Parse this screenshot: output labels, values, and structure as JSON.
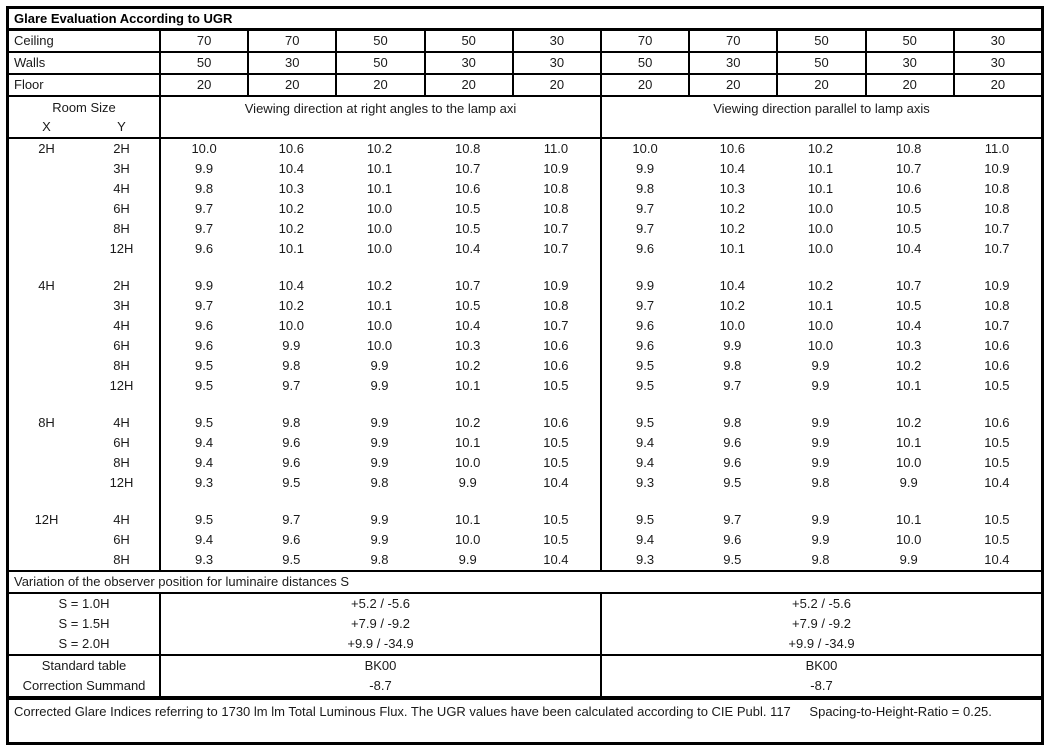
{
  "title": "Glare Evaluation According to UGR",
  "surface": {
    "rows": [
      {
        "label": "Ceiling",
        "values": [
          "70",
          "70",
          "50",
          "50",
          "30",
          "70",
          "70",
          "50",
          "50",
          "30"
        ]
      },
      {
        "label": "Walls",
        "values": [
          "50",
          "30",
          "50",
          "30",
          "30",
          "50",
          "30",
          "50",
          "30",
          "30"
        ]
      },
      {
        "label": "Floor",
        "values": [
          "20",
          "20",
          "20",
          "20",
          "20",
          "20",
          "20",
          "20",
          "20",
          "20"
        ]
      }
    ]
  },
  "column_header": {
    "room_size": "Room Size",
    "x": "X",
    "y": "Y",
    "left": "Viewing direction at right angles to the lamp axi",
    "right": "Viewing direction parallel to lamp axis"
  },
  "body": {
    "blocks": [
      {
        "x": "2H",
        "rows": [
          {
            "y": "2H",
            "values": [
              "10.0",
              "10.6",
              "10.2",
              "10.8",
              "11.0",
              "10.0",
              "10.6",
              "10.2",
              "10.8",
              "11.0"
            ]
          },
          {
            "y": "3H",
            "values": [
              "9.9",
              "10.4",
              "10.1",
              "10.7",
              "10.9",
              "9.9",
              "10.4",
              "10.1",
              "10.7",
              "10.9"
            ]
          },
          {
            "y": "4H",
            "values": [
              "9.8",
              "10.3",
              "10.1",
              "10.6",
              "10.8",
              "9.8",
              "10.3",
              "10.1",
              "10.6",
              "10.8"
            ]
          },
          {
            "y": "6H",
            "values": [
              "9.7",
              "10.2",
              "10.0",
              "10.5",
              "10.8",
              "9.7",
              "10.2",
              "10.0",
              "10.5",
              "10.8"
            ]
          },
          {
            "y": "8H",
            "values": [
              "9.7",
              "10.2",
              "10.0",
              "10.5",
              "10.7",
              "9.7",
              "10.2",
              "10.0",
              "10.5",
              "10.7"
            ]
          },
          {
            "y": "12H",
            "values": [
              "9.6",
              "10.1",
              "10.0",
              "10.4",
              "10.7",
              "9.6",
              "10.1",
              "10.0",
              "10.4",
              "10.7"
            ]
          }
        ]
      },
      {
        "x": "4H",
        "rows": [
          {
            "y": "2H",
            "values": [
              "9.9",
              "10.4",
              "10.2",
              "10.7",
              "10.9",
              "9.9",
              "10.4",
              "10.2",
              "10.7",
              "10.9"
            ]
          },
          {
            "y": "3H",
            "values": [
              "9.7",
              "10.2",
              "10.1",
              "10.5",
              "10.8",
              "9.7",
              "10.2",
              "10.1",
              "10.5",
              "10.8"
            ]
          },
          {
            "y": "4H",
            "values": [
              "9.6",
              "10.0",
              "10.0",
              "10.4",
              "10.7",
              "9.6",
              "10.0",
              "10.0",
              "10.4",
              "10.7"
            ]
          },
          {
            "y": "6H",
            "values": [
              "9.6",
              "9.9",
              "10.0",
              "10.3",
              "10.6",
              "9.6",
              "9.9",
              "10.0",
              "10.3",
              "10.6"
            ]
          },
          {
            "y": "8H",
            "values": [
              "9.5",
              "9.8",
              "9.9",
              "10.2",
              "10.6",
              "9.5",
              "9.8",
              "9.9",
              "10.2",
              "10.6"
            ]
          },
          {
            "y": "12H",
            "values": [
              "9.5",
              "9.7",
              "9.9",
              "10.1",
              "10.5",
              "9.5",
              "9.7",
              "9.9",
              "10.1",
              "10.5"
            ]
          }
        ]
      },
      {
        "x": "8H",
        "rows": [
          {
            "y": "4H",
            "values": [
              "9.5",
              "9.8",
              "9.9",
              "10.2",
              "10.6",
              "9.5",
              "9.8",
              "9.9",
              "10.2",
              "10.6"
            ]
          },
          {
            "y": "6H",
            "values": [
              "9.4",
              "9.6",
              "9.9",
              "10.1",
              "10.5",
              "9.4",
              "9.6",
              "9.9",
              "10.1",
              "10.5"
            ]
          },
          {
            "y": "8H",
            "values": [
              "9.4",
              "9.6",
              "9.9",
              "10.0",
              "10.5",
              "9.4",
              "9.6",
              "9.9",
              "10.0",
              "10.5"
            ]
          },
          {
            "y": "12H",
            "values": [
              "9.3",
              "9.5",
              "9.8",
              "9.9",
              "10.4",
              "9.3",
              "9.5",
              "9.8",
              "9.9",
              "10.4"
            ]
          }
        ]
      },
      {
        "x": "12H",
        "rows": [
          {
            "y": "4H",
            "values": [
              "9.5",
              "9.7",
              "9.9",
              "10.1",
              "10.5",
              "9.5",
              "9.7",
              "9.9",
              "10.1",
              "10.5"
            ]
          },
          {
            "y": "6H",
            "values": [
              "9.4",
              "9.6",
              "9.9",
              "10.0",
              "10.5",
              "9.4",
              "9.6",
              "9.9",
              "10.0",
              "10.5"
            ]
          },
          {
            "y": "8H",
            "values": [
              "9.3",
              "9.5",
              "9.8",
              "9.9",
              "10.4",
              "9.3",
              "9.5",
              "9.8",
              "9.9",
              "10.4"
            ]
          }
        ]
      }
    ]
  },
  "variation": {
    "heading": "Variation of the observer position for luminaire distances S",
    "rows": [
      {
        "label": "S = 1.0H",
        "left": "+5.2 / -5.6",
        "right": "+5.2 / -5.6"
      },
      {
        "label": "S = 1.5H",
        "left": "+7.9 / -9.2",
        "right": "+7.9 / -9.2"
      },
      {
        "label": "S = 2.0H",
        "left": "+9.9 / -34.9",
        "right": "+9.9 / -34.9"
      }
    ]
  },
  "summary": {
    "rows": [
      {
        "label": "Standard table",
        "left": "BK00",
        "right": "BK00"
      },
      {
        "label": "Correction Summand",
        "left": "-8.7",
        "right": "-8.7"
      }
    ]
  },
  "footer": {
    "text": "Corrected Glare Indices referring to 1730 lm lm Total Luminous Flux. The UGR values have been calculated according to CIE Publ. 117",
    "ratio": "Spacing-to-Height-Ratio = 0.25."
  },
  "colors": {
    "border": "#000000",
    "text": "#1a1a1a",
    "background": "#ffffff"
  }
}
